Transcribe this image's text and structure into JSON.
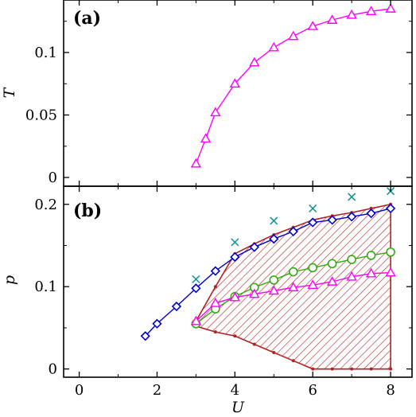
{
  "chart_data": [
    {
      "panel": "(a)",
      "type": "line",
      "xlabel": "",
      "ylabel": "T",
      "xlim": [
        -0.4,
        8.55
      ],
      "ylim": [
        -0.007,
        0.142
      ],
      "xticks": [
        0,
        2,
        4,
        6,
        8
      ],
      "yticks": [
        0,
        0.05,
        0.1
      ],
      "ytick_labels": [
        "0",
        "0.05",
        "0.1"
      ],
      "grid": false,
      "series": [
        {
          "marker": "triangle",
          "color": "#ff00ff",
          "x": [
            3.0,
            3.25,
            3.5,
            4.0,
            4.5,
            5.0,
            5.5,
            6.0,
            6.5,
            7.0,
            7.5,
            8.0
          ],
          "y": [
            0.011,
            0.031,
            0.052,
            0.075,
            0.092,
            0.104,
            0.113,
            0.121,
            0.126,
            0.13,
            0.133,
            0.135
          ]
        }
      ]
    },
    {
      "panel": "(b)",
      "type": "line",
      "xlabel": "U",
      "ylabel": "p",
      "xlim": [
        -0.4,
        8.55
      ],
      "ylim": [
        -0.01,
        0.222
      ],
      "xticks": [
        0,
        2,
        4,
        6,
        8
      ],
      "xtick_labels": [
        "0",
        "2",
        "4",
        "6",
        "8"
      ],
      "yticks": [
        0,
        0.1,
        0.2
      ],
      "ytick_labels": [
        "0",
        "0.1",
        "0.2"
      ],
      "grid": false,
      "region": {
        "color": "#b22222",
        "upper": {
          "x": [
            3.0,
            3.5,
            4.0,
            4.5,
            5.0,
            5.5,
            6.0,
            6.5,
            7.0,
            7.5,
            8.0
          ],
          "y": [
            0.058,
            0.1,
            0.14,
            0.152,
            0.163,
            0.172,
            0.181,
            0.186,
            0.19,
            0.195,
            0.2
          ]
        },
        "lower": {
          "x": [
            3.0,
            3.5,
            4.0,
            4.5,
            5.0,
            5.5,
            6.0,
            6.5,
            7.0,
            7.5,
            8.0
          ],
          "y": [
            0.052,
            0.045,
            0.04,
            0.03,
            0.02,
            0.01,
            0.0,
            0.0,
            0.0,
            0.0,
            0.0
          ]
        }
      },
      "series": [
        {
          "marker": "diamond",
          "color": "#0000cd",
          "x": [
            1.7,
            2.0,
            2.5,
            3.0,
            3.5,
            4.0,
            4.5,
            5.0,
            5.5,
            6.0,
            6.5,
            7.0,
            7.5,
            8.0
          ],
          "y": [
            0.04,
            0.055,
            0.076,
            0.098,
            0.119,
            0.136,
            0.148,
            0.158,
            0.167,
            0.178,
            0.181,
            0.185,
            0.189,
            0.195
          ]
        },
        {
          "marker": "circle",
          "color": "#33aa11",
          "x": [
            3.0,
            3.5,
            4.0,
            4.5,
            5.0,
            5.5,
            6.0,
            6.5,
            7.0,
            7.5,
            8.0
          ],
          "y": [
            0.055,
            0.073,
            0.088,
            0.099,
            0.108,
            0.118,
            0.123,
            0.128,
            0.133,
            0.138,
            0.142
          ]
        },
        {
          "marker": "triangle",
          "color": "#ff00ff",
          "x": [
            3.0,
            3.5,
            4.0,
            4.5,
            5.0,
            5.5,
            6.0,
            6.5,
            7.0,
            7.5,
            8.0
          ],
          "y": [
            0.058,
            0.08,
            0.087,
            0.091,
            0.095,
            0.099,
            0.102,
            0.106,
            0.112,
            0.116,
            0.117
          ]
        },
        {
          "marker": "cross",
          "color": "#109090",
          "line": false,
          "x": [
            3.0,
            4.0,
            5.0,
            6.0,
            7.0,
            8.0
          ],
          "y": [
            0.109,
            0.154,
            0.18,
            0.195,
            0.209,
            0.216
          ]
        }
      ]
    }
  ]
}
